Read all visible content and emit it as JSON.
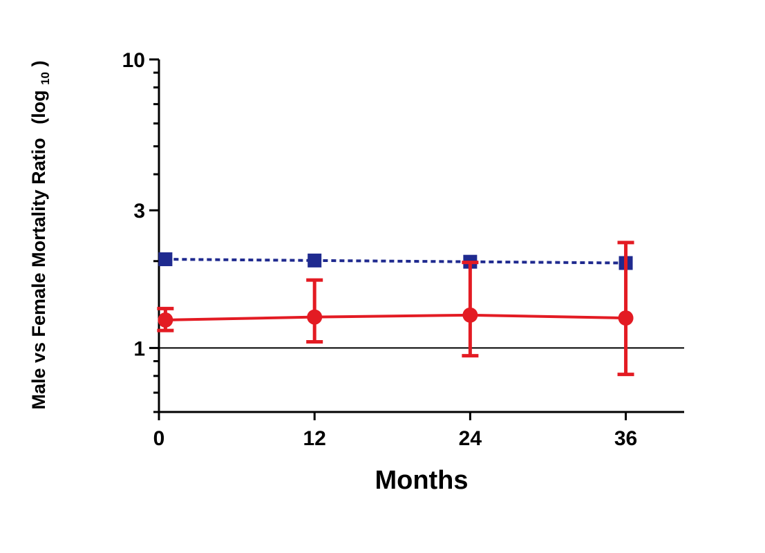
{
  "chart_data": {
    "type": "line",
    "title": "",
    "xlabel": "Months",
    "ylabel": "Male vs Female Mortality Ratio",
    "ylabel_suffix": "(log",
    "ylabel_sub": "10",
    "ylabel_close": ")",
    "yscale": "log",
    "xlim": [
      0,
      40.5
    ],
    "ylim": [
      0.6,
      10
    ],
    "x_ticks": [
      0,
      12,
      24,
      36
    ],
    "x_tick_labels": [
      "0",
      "12",
      "24",
      "36"
    ],
    "y_ticks": [
      1,
      3,
      10
    ],
    "y_tick_labels": [
      "1",
      "3",
      "10"
    ],
    "reference_line": 1,
    "grid": false,
    "legend": "none",
    "series": [
      {
        "color": "#1f2a8f",
        "style": "dotted",
        "marker": "square",
        "x": [
          0.5,
          12,
          24,
          36
        ],
        "y": [
          2.03,
          2.01,
          1.99,
          1.97
        ]
      },
      {
        "color": "#e31b23",
        "style": "solid",
        "marker": "circle",
        "x": [
          0.5,
          12,
          24,
          36
        ],
        "y": [
          1.25,
          1.28,
          1.3,
          1.27
        ],
        "err_low": [
          1.15,
          1.05,
          0.94,
          0.81
        ],
        "err_high": [
          1.37,
          1.72,
          1.98,
          2.32
        ]
      }
    ]
  }
}
